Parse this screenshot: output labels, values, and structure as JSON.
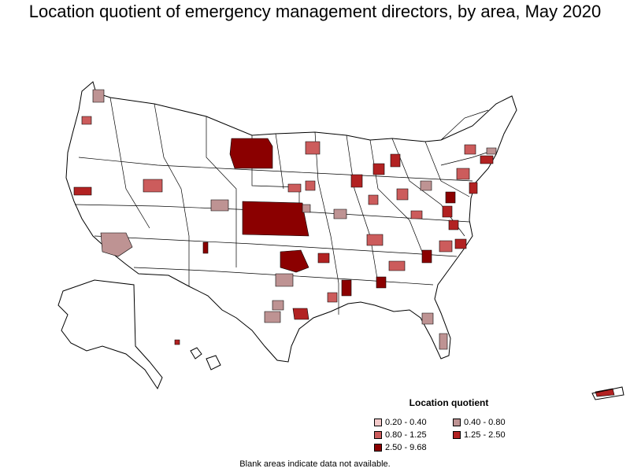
{
  "title": "Location quotient of emergency management directors, by area, May 2020",
  "legend": {
    "title": "Location quotient",
    "items": [
      {
        "label": "0.20 - 0.40",
        "color": "#f2c9c9"
      },
      {
        "label": "0.40 - 0.80",
        "color": "#be9393"
      },
      {
        "label": "0.80 - 1.25",
        "color": "#cc5c5c"
      },
      {
        "label": "1.25 - 2.50",
        "color": "#b22222"
      },
      {
        "label": "2.50 - 9.68",
        "color": "#8b0000"
      }
    ]
  },
  "footnote": "Blank areas indicate data not available.",
  "map_colors": {
    "boundary": "#000000",
    "no_data": "#ffffff"
  }
}
